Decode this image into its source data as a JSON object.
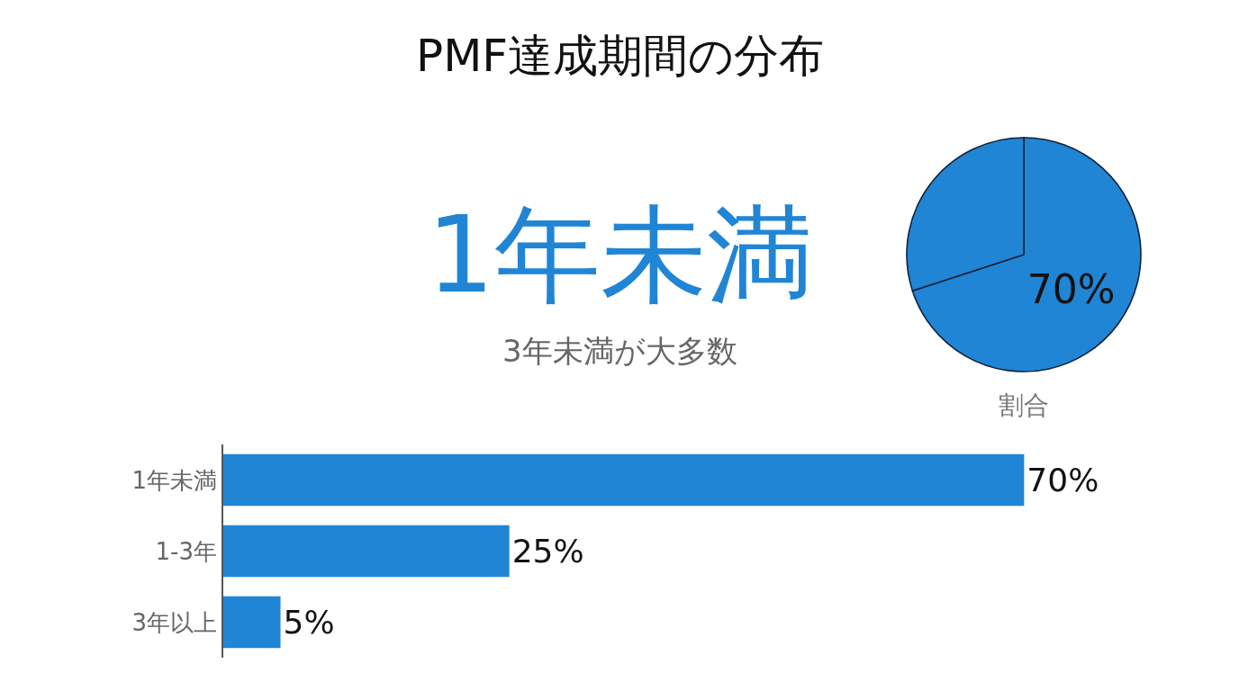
{
  "chart_data": [
    {
      "type": "other",
      "title": "PMF達成期間の分布",
      "annotations": [
        "1年未満",
        "3年未満が大多数"
      ]
    },
    {
      "type": "pie",
      "categories": [
        null,
        null
      ],
      "values": [
        70,
        30
      ],
      "colors": [
        "#2185d5",
        "#2185d5"
      ],
      "value_labels": [
        "70%",
        null
      ],
      "annotations": [
        "割合"
      ]
    },
    {
      "type": "bar",
      "orientation": "horizontal",
      "categories": [
        "1年未満",
        "1-3年",
        "3年以上"
      ],
      "values": [
        70,
        25,
        5
      ],
      "color": "#2185d5",
      "value_labels": [
        "70%",
        "25%",
        "5%"
      ],
      "tick_labels": "y"
    }
  ]
}
